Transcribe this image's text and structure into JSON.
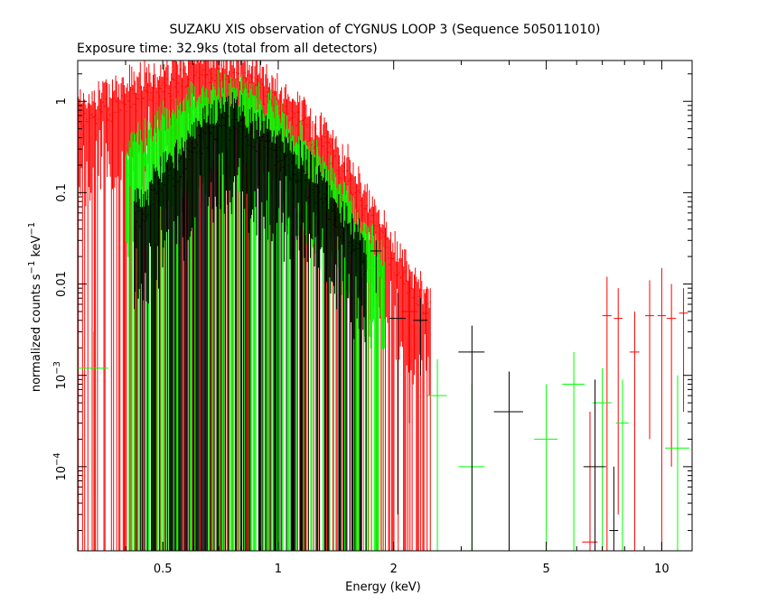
{
  "chart_data": {
    "type": "scatter",
    "title": "SUZAKU XIS observation of CYGNUS LOOP 3 (Sequence 505011010)",
    "subtitle": "Exposure time: 32.9ks (total from all detectors)",
    "xlabel": "Energy (keV)",
    "ylabel": {
      "base": "normalized counts s",
      "sup1": "−1",
      "mid": " keV",
      "sup2": "−1"
    },
    "x_scale": "log",
    "y_scale": "log",
    "xlim": [
      0.3,
      12
    ],
    "ylim": [
      1.2e-05,
      2.8
    ],
    "x_ticks": [
      {
        "v": 0.5,
        "label": "0.5"
      },
      {
        "v": 1,
        "label": "1"
      },
      {
        "v": 2,
        "label": "2"
      },
      {
        "v": 5,
        "label": "5"
      },
      {
        "v": 10,
        "label": "10"
      }
    ],
    "y_ticks": [
      {
        "v": 1,
        "label": "1"
      },
      {
        "v": 0.1,
        "label": "0.1"
      },
      {
        "v": 0.01,
        "label": "0.01"
      },
      {
        "v": 0.001,
        "label": "10",
        "sup": "−3"
      },
      {
        "v": 0.0001,
        "label": "10",
        "sup": "−4"
      }
    ],
    "grid": false,
    "legend": "none",
    "series": [
      {
        "color": "#ff0000",
        "segments": [
          [
            0.3,
            0.6
          ],
          [
            0.4,
            1.0
          ],
          [
            0.52,
            1.4
          ],
          [
            0.6,
            2.2
          ],
          [
            0.7,
            2.0
          ],
          [
            0.85,
            1.5
          ],
          [
            1.0,
            0.9
          ],
          [
            1.2,
            0.5
          ],
          [
            1.4,
            0.25
          ],
          [
            1.6,
            0.09
          ],
          [
            1.8,
            0.04
          ],
          [
            2.0,
            0.018
          ],
          [
            2.2,
            0.01
          ],
          [
            2.5,
            0.005
          ]
        ],
        "points": [
          {
            "x": 2.2,
            "y": 0.005,
            "xerr": 0.1,
            "ylo": 0.0003,
            "yhi": 0.012
          },
          {
            "x": 6.5,
            "y": 1.5e-05,
            "xerr": 0.3,
            "ylo": 1.2e-05,
            "yhi": 0.0004
          },
          {
            "x": 7.2,
            "y": 0.0045,
            "xerr": 0.2,
            "ylo": 1.2e-05,
            "yhi": 0.012
          },
          {
            "x": 7.7,
            "y": 0.0042,
            "xerr": 0.2,
            "ylo": 3e-05,
            "yhi": 0.009
          },
          {
            "x": 8.5,
            "y": 0.0018,
            "xerr": 0.25,
            "ylo": 1.2e-05,
            "yhi": 0.005
          },
          {
            "x": 9.3,
            "y": 0.0045,
            "xerr": 0.25,
            "ylo": 0.0002,
            "yhi": 0.011
          },
          {
            "x": 10.0,
            "y": 0.0045,
            "xerr": 0.25,
            "ylo": 1.2e-05,
            "yhi": 0.015
          },
          {
            "x": 10.6,
            "y": 0.0042,
            "xerr": 0.3,
            "ylo": 0.0001,
            "yhi": 0.01
          },
          {
            "x": 11.4,
            "y": 0.0048,
            "xerr": 0.3,
            "ylo": 0.0004,
            "yhi": 0.009
          }
        ]
      },
      {
        "color": "#00ff00",
        "segments": [
          [
            0.4,
            0.2
          ],
          [
            0.5,
            0.4
          ],
          [
            0.6,
            0.7
          ],
          [
            0.7,
            0.9
          ],
          [
            0.8,
            0.85
          ],
          [
            0.9,
            0.7
          ],
          [
            1.0,
            0.45
          ],
          [
            1.1,
            0.3
          ],
          [
            1.2,
            0.2
          ],
          [
            1.35,
            0.12
          ],
          [
            1.5,
            0.06
          ],
          [
            1.7,
            0.025
          ],
          [
            1.9,
            0.012
          ]
        ],
        "points": [
          {
            "x": 0.33,
            "y": 0.0012,
            "xerr": 0.03,
            "ylo": 1.2e-05,
            "yhi": 0.003
          },
          {
            "x": 2.6,
            "y": 0.0006,
            "xerr": 0.15,
            "ylo": 1.2e-05,
            "yhi": 0.0015
          },
          {
            "x": 3.2,
            "y": 0.0001,
            "xerr": 0.25,
            "ylo": 1.2e-05,
            "yhi": 0.0008
          },
          {
            "x": 5.0,
            "y": 0.0002,
            "xerr": 0.35,
            "ylo": 1.2e-05,
            "yhi": 0.0008
          },
          {
            "x": 5.9,
            "y": 0.0008,
            "xerr": 0.4,
            "ylo": 1.2e-05,
            "yhi": 0.0018
          },
          {
            "x": 7.0,
            "y": 0.0005,
            "xerr": 0.4,
            "ylo": 1.2e-05,
            "yhi": 0.0012
          },
          {
            "x": 7.9,
            "y": 0.0003,
            "xerr": 0.3,
            "ylo": 1.2e-05,
            "yhi": 0.0009
          },
          {
            "x": 11.0,
            "y": 0.00016,
            "xerr": 0.8,
            "ylo": 1.2e-05,
            "yhi": 0.001
          }
        ]
      },
      {
        "color": "#000000",
        "segments": [
          [
            0.42,
            0.05
          ],
          [
            0.5,
            0.12
          ],
          [
            0.6,
            0.28
          ],
          [
            0.65,
            0.4
          ],
          [
            0.72,
            0.55
          ],
          [
            0.8,
            0.5
          ],
          [
            0.9,
            0.35
          ],
          [
            1.0,
            0.25
          ],
          [
            1.1,
            0.18
          ],
          [
            1.2,
            0.12
          ],
          [
            1.3,
            0.08
          ],
          [
            1.5,
            0.04
          ],
          [
            1.7,
            0.015
          ]
        ],
        "points": [
          {
            "x": 1.8,
            "y": 0.023,
            "xerr": 0.06,
            "ylo": 0.008,
            "yhi": 0.03
          },
          {
            "x": 2.05,
            "y": 0.0042,
            "xerr": 0.1,
            "ylo": 3e-05,
            "yhi": 0.008
          },
          {
            "x": 2.35,
            "y": 0.004,
            "xerr": 0.1,
            "ylo": 0.001,
            "yhi": 0.007
          },
          {
            "x": 3.2,
            "y": 0.0018,
            "xerr": 0.25,
            "ylo": 1.2e-05,
            "yhi": 0.0035
          },
          {
            "x": 4.0,
            "y": 0.0004,
            "xerr": 0.35,
            "ylo": 1.2e-05,
            "yhi": 0.0011
          },
          {
            "x": 6.7,
            "y": 0.0001,
            "xerr": 0.45,
            "ylo": 1.2e-05,
            "yhi": 0.0009
          },
          {
            "x": 7.5,
            "y": 2e-05,
            "xerr": 0.2,
            "ylo": 1.2e-05,
            "yhi": 0.0001
          }
        ]
      }
    ]
  }
}
